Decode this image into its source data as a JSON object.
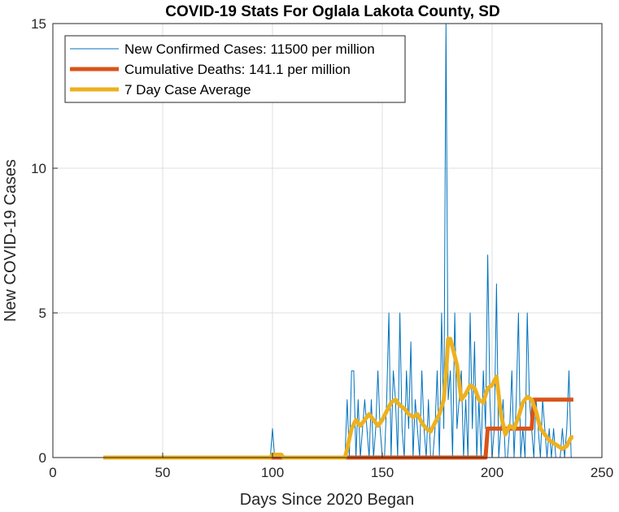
{
  "chart_data": {
    "type": "line",
    "title": "COVID-19 Stats For Oglala Lakota County, SD",
    "xlabel": "Days Since 2020 Began",
    "ylabel": "New COVID-19 Cases",
    "xlim": [
      0,
      250
    ],
    "ylim": [
      0,
      15
    ],
    "xticks": [
      0,
      50,
      100,
      150,
      200,
      250
    ],
    "yticks": [
      0,
      5,
      10,
      15
    ],
    "grid": true,
    "legend_position": "top-left",
    "series": [
      {
        "name": "New Confirmed Cases: 11500 per million",
        "color": "#0072BD",
        "width": 1,
        "x": [
          23,
          99,
          100,
          101,
          102,
          103,
          104,
          105,
          133,
          134,
          135,
          136,
          137,
          138,
          139,
          140,
          141,
          142,
          143,
          144,
          145,
          146,
          147,
          148,
          149,
          150,
          151,
          152,
          153,
          154,
          155,
          156,
          157,
          158,
          159,
          160,
          161,
          162,
          163,
          164,
          165,
          166,
          167,
          168,
          169,
          170,
          171,
          172,
          173,
          174,
          175,
          176,
          177,
          178,
          179,
          180,
          181,
          182,
          183,
          184,
          185,
          186,
          187,
          188,
          189,
          190,
          191,
          192,
          193,
          194,
          195,
          196,
          197,
          198,
          199,
          200,
          201,
          202,
          203,
          204,
          205,
          206,
          207,
          208,
          209,
          210,
          211,
          212,
          213,
          214,
          215,
          216,
          217,
          218,
          219,
          220,
          221,
          222,
          223,
          224,
          225,
          226,
          227,
          228,
          229,
          230,
          231,
          232,
          233,
          234,
          235,
          236,
          237
        ],
        "y": [
          0,
          0,
          1,
          0,
          0,
          0,
          0,
          0,
          0,
          2,
          0,
          3,
          3,
          0,
          2,
          0,
          1,
          2,
          1,
          0,
          2,
          0,
          1,
          3,
          1,
          0,
          0,
          2,
          5,
          0,
          3,
          2,
          0,
          5,
          1,
          0,
          3,
          1,
          4,
          0,
          2,
          1,
          0,
          3,
          1,
          0,
          2,
          0,
          0,
          1,
          3,
          0,
          5,
          1,
          15,
          2,
          3,
          0,
          5,
          1,
          2,
          3,
          0,
          2,
          0,
          5,
          1,
          4,
          0,
          2,
          0,
          3,
          1,
          7,
          2,
          0,
          1,
          6,
          0,
          1,
          2,
          0,
          0,
          1,
          3,
          0,
          2,
          5,
          0,
          1,
          0,
          5,
          2,
          1,
          0,
          2,
          1,
          0,
          2,
          1,
          0,
          1,
          0,
          1,
          0,
          0,
          0,
          1,
          0,
          1,
          3,
          0,
          0
        ]
      },
      {
        "name": "Cumulative Deaths: 141.1 per million",
        "color": "#D95319",
        "width": 5,
        "x": [
          23,
          197,
          198,
          218,
          219,
          237
        ],
        "y": [
          0,
          0,
          1,
          1,
          2,
          2
        ]
      },
      {
        "name": "7 Day Case Average",
        "color": "#EDB120",
        "width": 5,
        "x": [
          23,
          99,
          100,
          104,
          105,
          106,
          133,
          134,
          136,
          138,
          140,
          142,
          144,
          146,
          148,
          150,
          152,
          154,
          156,
          158,
          160,
          162,
          164,
          166,
          168,
          170,
          172,
          174,
          176,
          178,
          179,
          180,
          181,
          182,
          184,
          186,
          188,
          190,
          192,
          194,
          196,
          198,
          200,
          202,
          204,
          206,
          208,
          210,
          212,
          214,
          216,
          218,
          220,
          222,
          224,
          226,
          228,
          230,
          232,
          234,
          236,
          237
        ],
        "y": [
          0,
          0,
          0.1,
          0.1,
          0,
          0,
          0,
          0.3,
          1.0,
          1.3,
          1.1,
          1.3,
          1.5,
          1.3,
          1.1,
          1.3,
          1.6,
          1.9,
          2.0,
          1.8,
          1.7,
          1.5,
          1.4,
          1.5,
          1.2,
          1.0,
          0.9,
          1.2,
          1.5,
          2.0,
          2.9,
          4.1,
          4.1,
          3.8,
          3.2,
          2.0,
          2.2,
          2.5,
          2.4,
          2.0,
          1.9,
          2.4,
          2.5,
          2.8,
          1.5,
          0.8,
          1.1,
          1.0,
          1.4,
          1.9,
          2.1,
          2.0,
          1.6,
          1.0,
          0.8,
          0.6,
          0.5,
          0.4,
          0.3,
          0.4,
          0.7,
          0.7
        ]
      }
    ]
  }
}
